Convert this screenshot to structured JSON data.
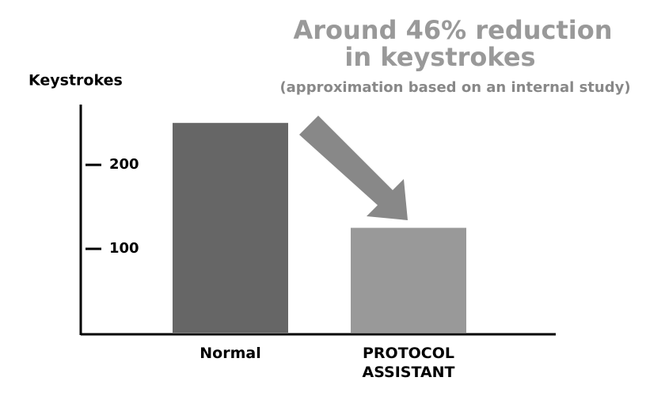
{
  "chart_data": {
    "type": "bar",
    "title": [
      "Around 46% reduction",
      "in keystrokes"
    ],
    "subtitle": "(approximation based on an internal study)",
    "y_label": "Keystrokes",
    "categories": [
      "Normal",
      "PROTOCOL ASSISTANT"
    ],
    "values": [
      250,
      125
    ],
    "colors": [
      "#666666",
      "#999999"
    ],
    "ylim": [
      0,
      270
    ],
    "yticks": [
      100,
      200
    ],
    "grid": false
  }
}
